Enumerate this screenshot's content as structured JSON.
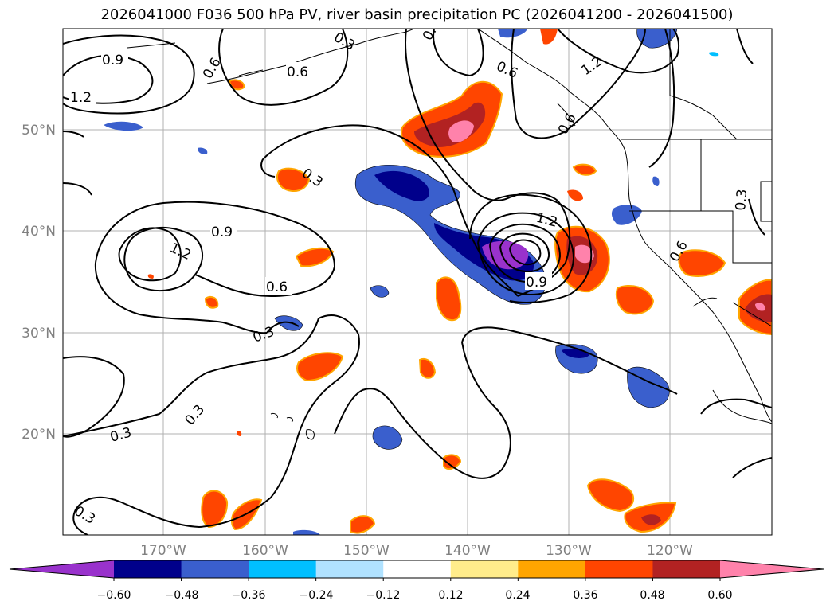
{
  "title": "2026041000 F036 500 hPa PV, river basin precipitation PC (2026041200 - 2026041500)",
  "lat_labels": [
    "50°N",
    "40°N",
    "30°N",
    "20°N"
  ],
  "lon_labels": [
    "170°W",
    "160°W",
    "150°W",
    "140°W",
    "130°W",
    "120°W"
  ],
  "contour_labels": [
    "0.9",
    "1.2",
    "0.6",
    "0.6",
    "0.3",
    "0.3",
    "0.6",
    "0.6",
    "1.2",
    "0.3",
    "0.9",
    "1.2",
    "0.6",
    "0.3",
    "1.2",
    "0.9",
    "0.6",
    "0.3",
    "0.3",
    "0.3",
    "0.3"
  ],
  "colorbar": {
    "ticks": [
      "−0.60",
      "−0.48",
      "−0.36",
      "−0.24",
      "−0.12",
      "0.12",
      "0.24",
      "0.36",
      "0.48",
      "0.60"
    ],
    "colors": [
      "#9932cc",
      "#00008b",
      "#3a5fcd",
      "#00bfff",
      "#b0e2ff",
      "#ffffff",
      "#ffec8b",
      "#ffa500",
      "#ff4500",
      "#b22222",
      "#ff82ab"
    ]
  }
}
